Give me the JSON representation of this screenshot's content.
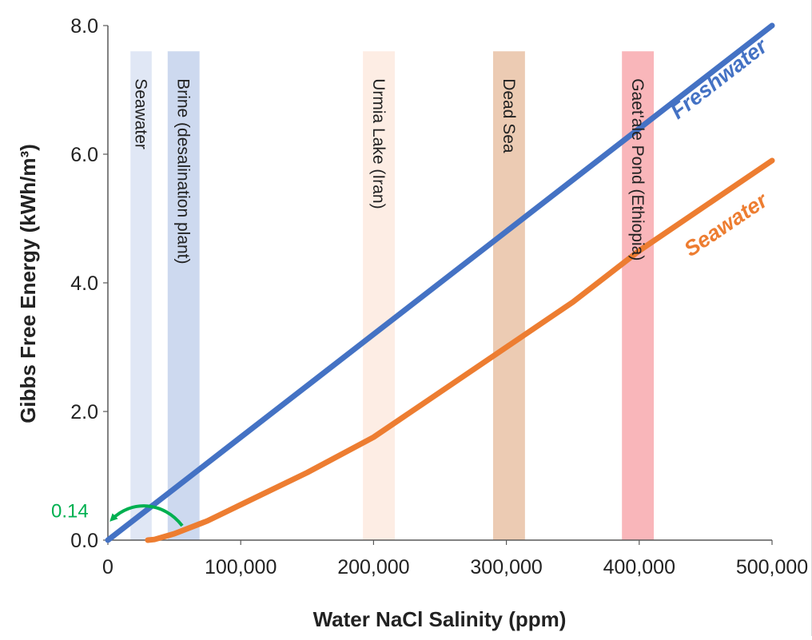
{
  "chart_data": {
    "type": "line",
    "xlabel": "Water NaCl Salinity (ppm)",
    "ylabel": "Gibbs Free Energy (kWh/m³)",
    "xlim": [
      0,
      500000
    ],
    "ylim": [
      0,
      8.0
    ],
    "x_ticks": [
      0,
      100000,
      200000,
      300000,
      400000,
      500000
    ],
    "x_tick_labels": [
      "0",
      "100,000",
      "200,000",
      "300,000",
      "400,000",
      "500,000"
    ],
    "y_ticks": [
      0,
      2,
      4,
      6,
      8
    ],
    "y_tick_labels": [
      "0.0",
      "2.0",
      "4.0",
      "6.0",
      "8.0"
    ],
    "grid": false,
    "series": [
      {
        "name": "Freshwater",
        "color": "#4472C4",
        "x": [
          0,
          50000,
          100000,
          150000,
          200000,
          250000,
          300000,
          350000,
          400000,
          450000,
          500000
        ],
        "y": [
          0.0,
          0.8,
          1.6,
          2.4,
          3.2,
          4.0,
          4.8,
          5.6,
          6.4,
          7.2,
          8.0
        ]
      },
      {
        "name": "Seawater",
        "color": "#ED7D31",
        "x": [
          30000,
          35000,
          50000,
          75000,
          100000,
          150000,
          200000,
          250000,
          300000,
          350000,
          400000,
          450000,
          500000
        ],
        "y": [
          0.0,
          0.01,
          0.1,
          0.3,
          0.55,
          1.05,
          1.6,
          2.3,
          3.0,
          3.7,
          4.5,
          5.2,
          5.9
        ]
      }
    ],
    "bands": [
      {
        "label": "Seawater",
        "x_start": 17000,
        "x_end": 33000,
        "y_top": 7.6,
        "color": "#DAE3F3"
      },
      {
        "label": "Brine (desalination plant)",
        "x_start": 45000,
        "x_end": 69000,
        "y_top": 7.6,
        "color": "#C4D2EC"
      },
      {
        "label": "Urmia Lake (Iran)",
        "x_start": 192000,
        "x_end": 216000,
        "y_top": 7.6,
        "color": "#FDEADF"
      },
      {
        "label": "Dead Sea",
        "x_start": 290000,
        "x_end": 314000,
        "y_top": 7.6,
        "color": "#E9C2A6"
      },
      {
        "label": "Gaet'ale Pond (Ethiopia)",
        "x_start": 387000,
        "x_end": 411000,
        "y_top": 7.6,
        "color": "#F8A9AE"
      }
    ],
    "annotations": [
      {
        "text": "0.14",
        "color": "#00B050",
        "x": 0,
        "y": 0.14
      }
    ]
  }
}
